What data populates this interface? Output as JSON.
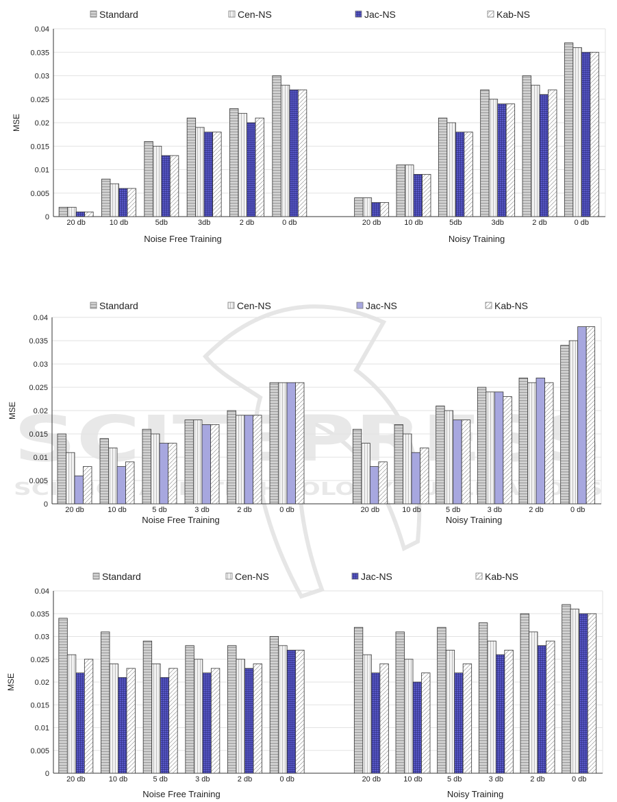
{
  "series_names": [
    "Standard",
    "Cen-NS",
    "Jac-NS",
    "Kab-NS"
  ],
  "colors": {
    "standard_fill": "#d0d0d0",
    "standard_line": "#8a8a8a",
    "cen_fill": "#f2f2f2",
    "cen_line": "#b0b0b0",
    "jac_fill": "#5a5acb",
    "jac_line": "#2a2a7a",
    "jac_plain_fill": "#a7a7df",
    "kab_fill": "#ffffff",
    "kab_line": "#9a9a9a",
    "grid": "#e2e2e2",
    "axis": "#333333"
  },
  "watermark": {
    "big": "SCITEPRESS",
    "small": "SCIENCE AND TECHNOLOGY PUBLICATIONS"
  },
  "chart_data": [
    {
      "type": "bar",
      "ylabel": "MSE",
      "ylim": [
        0,
        0.04
      ],
      "yticks": [
        "0",
        "0.005",
        "0.01",
        "0.015",
        "0.02",
        "0.025",
        "0.03",
        "0.035",
        "0.04"
      ],
      "groups": [
        {
          "title": "Noise Free Training",
          "categories": [
            "20 db",
            "10 db",
            "5db",
            "3db",
            "2 db",
            "0 db"
          ],
          "series": [
            {
              "name": "Standard",
              "values": [
                0.002,
                0.008,
                0.016,
                0.021,
                0.023,
                0.03
              ]
            },
            {
              "name": "Cen-NS",
              "values": [
                0.002,
                0.007,
                0.015,
                0.019,
                0.022,
                0.028
              ]
            },
            {
              "name": "Jac-NS",
              "values": [
                0.001,
                0.006,
                0.013,
                0.018,
                0.02,
                0.027
              ]
            },
            {
              "name": "Kab-NS",
              "values": [
                0.001,
                0.006,
                0.013,
                0.018,
                0.021,
                0.027
              ]
            }
          ]
        },
        {
          "title": "Noisy Training",
          "categories": [
            "20 db",
            "10 db",
            "5db",
            "3db",
            "2 db",
            "0 db"
          ],
          "series": [
            {
              "name": "Standard",
              "values": [
                0.004,
                0.011,
                0.021,
                0.027,
                0.03,
                0.037
              ]
            },
            {
              "name": "Cen-NS",
              "values": [
                0.004,
                0.011,
                0.02,
                0.025,
                0.028,
                0.036
              ]
            },
            {
              "name": "Jac-NS",
              "values": [
                0.003,
                0.009,
                0.018,
                0.024,
                0.026,
                0.035
              ]
            },
            {
              "name": "Kab-NS",
              "values": [
                0.003,
                0.009,
                0.018,
                0.024,
                0.027,
                0.035
              ]
            }
          ]
        }
      ]
    },
    {
      "type": "bar",
      "ylabel": "MSE",
      "ylim": [
        0,
        0.04
      ],
      "yticks": [
        "0",
        "0.005",
        "0.01",
        "0.015",
        "0.02",
        "0.025",
        "0.03",
        "0.035",
        "0.04"
      ],
      "groups": [
        {
          "title": "Noise Free Training",
          "categories": [
            "20 db",
            "10 db",
            "5 db",
            "3 db",
            "2 db",
            "0 db"
          ],
          "series": [
            {
              "name": "Standard",
              "values": [
                0.015,
                0.014,
                0.016,
                0.018,
                0.02,
                0.026
              ]
            },
            {
              "name": "Cen-NS",
              "values": [
                0.011,
                0.012,
                0.015,
                0.018,
                0.019,
                0.026
              ]
            },
            {
              "name": "Jac-NS",
              "values": [
                0.006,
                0.008,
                0.013,
                0.017,
                0.019,
                0.026
              ]
            },
            {
              "name": "Kab-NS",
              "values": [
                0.008,
                0.009,
                0.013,
                0.017,
                0.019,
                0.026
              ]
            }
          ]
        },
        {
          "title": "Noisy Training",
          "categories": [
            "20 db",
            "10 db",
            "5 db",
            "3 db",
            "2 db",
            "0 db"
          ],
          "series": [
            {
              "name": "Standard",
              "values": [
                0.016,
                0.017,
                0.021,
                0.025,
                0.027,
                0.034
              ]
            },
            {
              "name": "Cen-NS",
              "values": [
                0.013,
                0.015,
                0.02,
                0.024,
                0.026,
                0.035
              ]
            },
            {
              "name": "Jac-NS",
              "values": [
                0.008,
                0.011,
                0.018,
                0.024,
                0.027,
                0.038
              ]
            },
            {
              "name": "Kab-NS",
              "values": [
                0.009,
                0.012,
                0.018,
                0.023,
                0.026,
                0.038
              ]
            }
          ]
        }
      ]
    },
    {
      "type": "bar",
      "ylabel": "MSE",
      "ylim": [
        0,
        0.04
      ],
      "yticks": [
        "0",
        "0.005",
        "0.01",
        "0.015",
        "0.02",
        "0.025",
        "0.03",
        "0.035",
        "0.04"
      ],
      "groups": [
        {
          "title": "Noise Free Training",
          "categories": [
            "20 db",
            "10 db",
            "5 db",
            "3 db",
            "2 db",
            "0 db"
          ],
          "series": [
            {
              "name": "Standard",
              "values": [
                0.034,
                0.031,
                0.029,
                0.028,
                0.028,
                0.03
              ]
            },
            {
              "name": "Cen-NS",
              "values": [
                0.026,
                0.024,
                0.024,
                0.025,
                0.025,
                0.028
              ]
            },
            {
              "name": "Jac-NS",
              "values": [
                0.022,
                0.021,
                0.021,
                0.022,
                0.023,
                0.027
              ]
            },
            {
              "name": "Kab-NS",
              "values": [
                0.025,
                0.023,
                0.023,
                0.023,
                0.024,
                0.027
              ]
            }
          ]
        },
        {
          "title": "Noisy Training",
          "categories": [
            "20 db",
            "10 db",
            "5 db",
            "3 db",
            "2 db",
            "0 db"
          ],
          "series": [
            {
              "name": "Standard",
              "values": [
                0.032,
                0.031,
                0.032,
                0.033,
                0.035,
                0.037
              ]
            },
            {
              "name": "Cen-NS",
              "values": [
                0.026,
                0.025,
                0.027,
                0.029,
                0.031,
                0.036
              ]
            },
            {
              "name": "Jac-NS",
              "values": [
                0.022,
                0.02,
                0.022,
                0.026,
                0.028,
                0.035
              ]
            },
            {
              "name": "Kab-NS",
              "values": [
                0.024,
                0.022,
                0.024,
                0.027,
                0.029,
                0.035
              ]
            }
          ]
        }
      ]
    }
  ]
}
